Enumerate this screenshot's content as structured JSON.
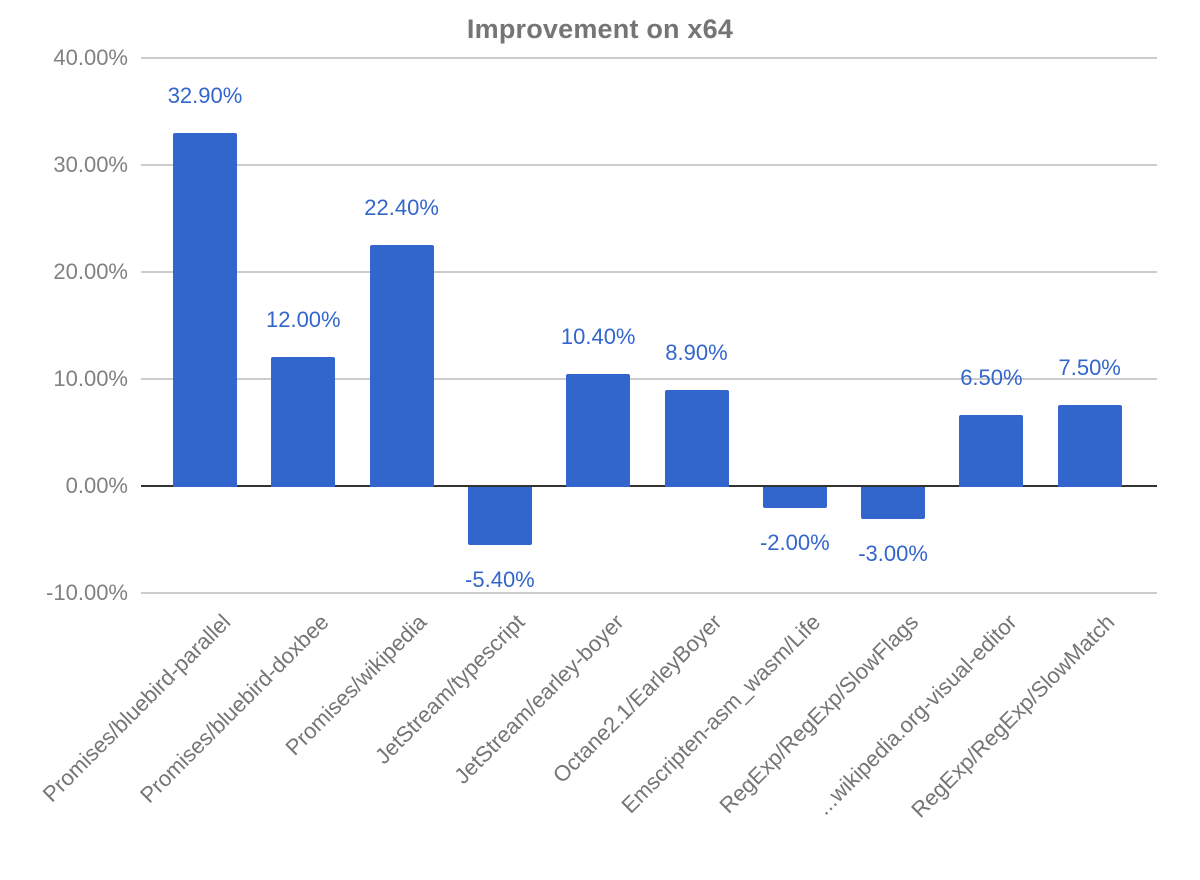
{
  "chart_data": {
    "type": "bar",
    "title": "Improvement on x64",
    "categories": [
      "Promises/bluebird-parallel",
      "Promises/bluebird-doxbee",
      "Promises/wikipedia",
      "JetStream/typescript",
      "JetStream/earley-boyer",
      "Octane2.1/EarleyBoyer",
      "Emscripten-asm_wasm/Life",
      "RegExp/RegExp/SlowFlags",
      "...wikipedia.org-visual-editor",
      "RegExp/RegExp/SlowMatch"
    ],
    "values": [
      32.9,
      12.0,
      22.4,
      -5.4,
      10.4,
      8.9,
      -2.0,
      -3.0,
      6.5,
      7.5
    ],
    "value_labels": [
      "32.90%",
      "12.00%",
      "22.40%",
      "-5.40%",
      "10.40%",
      "8.90%",
      "-2.00%",
      "-3.00%",
      "6.50%",
      "7.50%"
    ],
    "y_ticks": [
      {
        "value": 40,
        "label": "40.00%"
      },
      {
        "value": 30,
        "label": "30.00%"
      },
      {
        "value": 20,
        "label": "20.00%"
      },
      {
        "value": 10,
        "label": "10.00%"
      },
      {
        "value": 0,
        "label": "0.00%"
      },
      {
        "value": -10,
        "label": "-10.00%"
      }
    ],
    "ylim": [
      -10,
      40
    ],
    "xlabel": "",
    "ylabel": "",
    "grid": true,
    "legend_position": "none"
  },
  "colors": {
    "bar": "#3366cc",
    "value_label": "#3366cc",
    "title_text": "#757575",
    "y_tick_text": "#818181",
    "x_tick_text": "#757575",
    "gridline": "#cccccc",
    "zero_line": "#333333",
    "background": "#ffffff"
  }
}
